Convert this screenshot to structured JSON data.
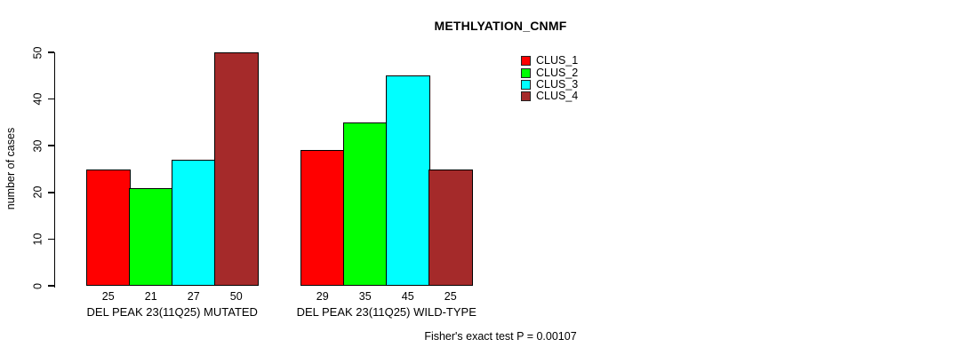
{
  "chart_data": {
    "type": "bar",
    "title": "METHLYATION_CNMF",
    "ylabel": "number of cases",
    "xlabel": "",
    "ylim": [
      0,
      50
    ],
    "yticks": [
      0,
      10,
      20,
      30,
      40,
      50
    ],
    "grid": false,
    "legend_position": "top-right",
    "categories": [
      "DEL PEAK 23(11Q25) MUTATED",
      "DEL PEAK 23(11Q25) WILD-TYPE"
    ],
    "series": [
      {
        "name": "CLUS_1",
        "color": "#ff0000",
        "values": [
          25,
          29
        ]
      },
      {
        "name": "CLUS_2",
        "color": "#00ff00",
        "values": [
          21,
          35
        ]
      },
      {
        "name": "CLUS_3",
        "color": "#00ffff",
        "values": [
          27,
          45
        ]
      },
      {
        "name": "CLUS_4",
        "color": "#a52a2a",
        "values": [
          50,
          25
        ]
      }
    ],
    "bar_value_labels": [
      [
        25,
        21,
        27,
        50
      ],
      [
        29,
        35,
        45,
        25
      ]
    ],
    "footnote": "Fisher's exact test P = 0.00107"
  },
  "colors": {
    "background": "#ffffff",
    "text": "#000000",
    "axis": "#000000",
    "bar_border": "#000000"
  }
}
